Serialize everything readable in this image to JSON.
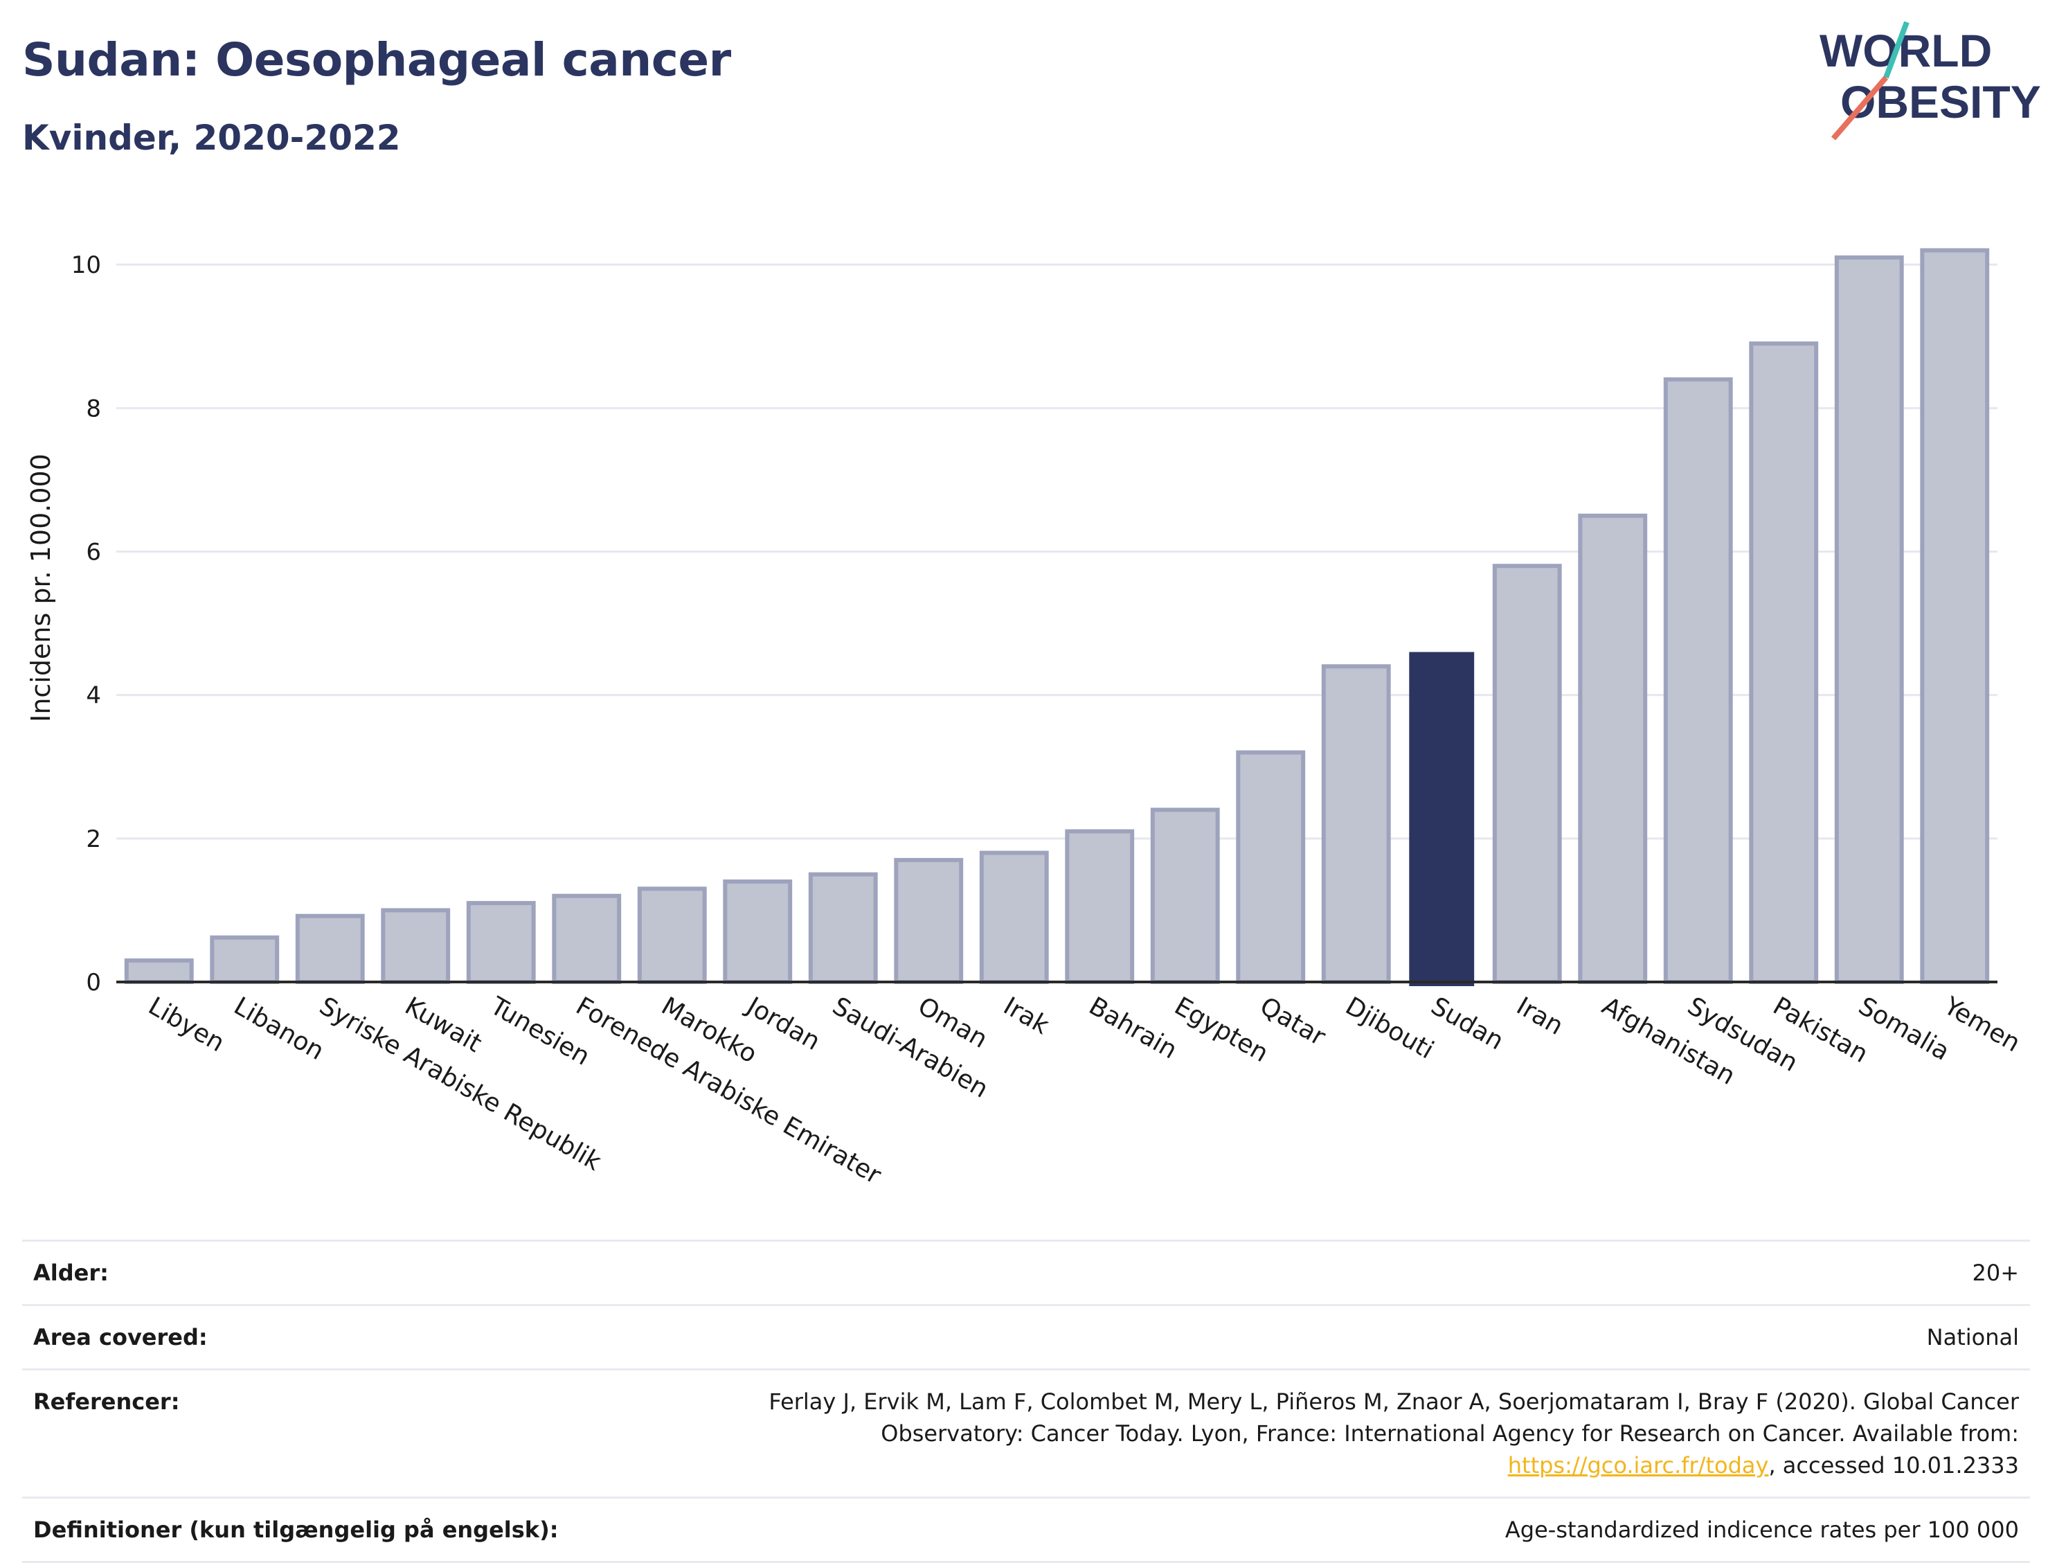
{
  "header": {
    "title": "Sudan: Oesophageal cancer",
    "subtitle": "Kvinder, 2020-2022"
  },
  "logo": {
    "line1": "WORLD",
    "line2": "OBESITY",
    "colors": {
      "text": "#2b3560",
      "accent1": "#3fbfb3",
      "accent2": "#e8705c"
    }
  },
  "chart_data": {
    "type": "bar",
    "ylabel": "Incidens pr. 100.000",
    "xlabel": "",
    "ylim": [
      0,
      10.6
    ],
    "yticks": [
      0,
      2,
      4,
      6,
      8,
      10
    ],
    "grid": true,
    "highlight": "Sudan",
    "colors": {
      "bar": "#c0c3d0",
      "bar_border": "#9ea3bd",
      "highlight": "#2b3560"
    },
    "categories": [
      "Libyen",
      "Libanon",
      "Syriske Arabiske Republik",
      "Kuwait",
      "Tunesien",
      "Forenede Arabiske Emirater",
      "Marokko",
      "Jordan",
      "Saudi-Arabien",
      "Oman",
      "Irak",
      "Bahrain",
      "Egypten",
      "Qatar",
      "Djibouti",
      "Sudan",
      "Iran",
      "Afghanistan",
      "Sydsudan",
      "Pakistan",
      "Somalia",
      "Yemen"
    ],
    "values": [
      0.3,
      0.62,
      0.92,
      1.0,
      1.1,
      1.2,
      1.3,
      1.4,
      1.5,
      1.7,
      1.8,
      2.1,
      2.4,
      3.2,
      4.4,
      4.6,
      5.8,
      6.5,
      8.4,
      8.9,
      10.1,
      10.2
    ]
  },
  "info": {
    "age_label": "Alder:",
    "age_value": "20+",
    "area_label": "Area covered:",
    "area_value": "National",
    "ref_label": "Referencer:",
    "ref_text_1": "Ferlay J, Ervik M, Lam F, Colombet M, Mery L, Piñeros M, Znaor A, Soerjomataram I, Bray F (2020). Global Cancer Observatory: Cancer Today. Lyon, France: International Agency for Research on Cancer. Available from: ",
    "ref_link": "https://gco.iarc.fr/today",
    "ref_text_2": ", accessed 10.01.2333",
    "def_label": "Definitioner (kun tilgængelig på engelsk):",
    "def_value": "Age-standardized indicence rates per 100 000"
  }
}
